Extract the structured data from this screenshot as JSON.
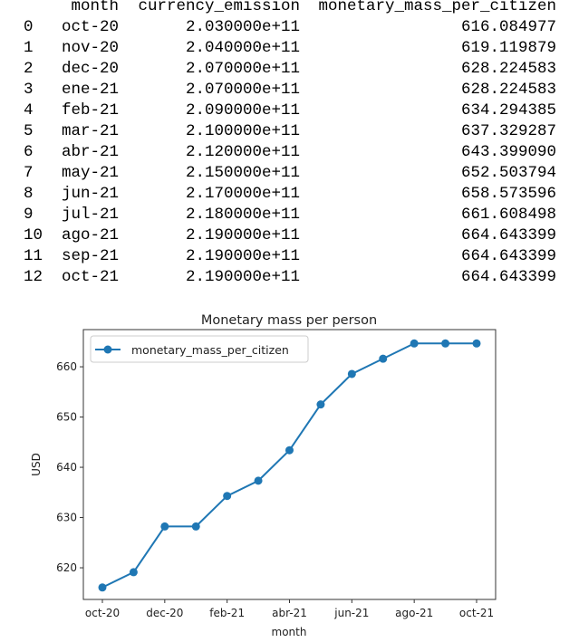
{
  "dataframe": {
    "columns": [
      "",
      "month",
      "currency_emission",
      "monetary_mass_per_citizen"
    ],
    "rows": [
      [
        "0",
        "oct-20",
        "2.030000e+11",
        "616.084977"
      ],
      [
        "1",
        "nov-20",
        "2.040000e+11",
        "619.119879"
      ],
      [
        "2",
        "dec-20",
        "2.070000e+11",
        "628.224583"
      ],
      [
        "3",
        "ene-21",
        "2.070000e+11",
        "628.224583"
      ],
      [
        "4",
        "feb-21",
        "2.090000e+11",
        "634.294385"
      ],
      [
        "5",
        "mar-21",
        "2.100000e+11",
        "637.329287"
      ],
      [
        "6",
        "abr-21",
        "2.120000e+11",
        "643.399090"
      ],
      [
        "7",
        "may-21",
        "2.150000e+11",
        "652.503794"
      ],
      [
        "8",
        "jun-21",
        "2.170000e+11",
        "658.573596"
      ],
      [
        "9",
        "jul-21",
        "2.180000e+11",
        "661.608498"
      ],
      [
        "10",
        "ago-21",
        "2.190000e+11",
        "664.643399"
      ],
      [
        "11",
        "sep-21",
        "2.190000e+11",
        "664.643399"
      ],
      [
        "12",
        "oct-21",
        "2.190000e+11",
        "664.643399"
      ]
    ]
  },
  "chart_data": {
    "type": "line",
    "title": "Monetary mass per person",
    "xlabel": "month",
    "ylabel": "USD",
    "categories": [
      "oct-20",
      "nov-20",
      "dec-20",
      "ene-21",
      "feb-21",
      "mar-21",
      "abr-21",
      "may-21",
      "jun-21",
      "jul-21",
      "ago-21",
      "sep-21",
      "oct-21"
    ],
    "series": [
      {
        "name": "monetary_mass_per_citizen",
        "color": "#1f77b4",
        "values": [
          616.084977,
          619.119879,
          628.224583,
          628.224583,
          634.294385,
          637.329287,
          643.39909,
          652.503794,
          658.573596,
          661.608498,
          664.643399,
          664.643399,
          664.643399
        ]
      }
    ],
    "xticks": [
      "oct-20",
      "dec-20",
      "feb-21",
      "abr-21",
      "jun-21",
      "ago-21",
      "oct-21"
    ],
    "yticks": [
      "620",
      "630",
      "640",
      "650",
      "660"
    ],
    "ylim": [
      613.7,
      667.4
    ],
    "grid": false,
    "legend": "top-left"
  }
}
